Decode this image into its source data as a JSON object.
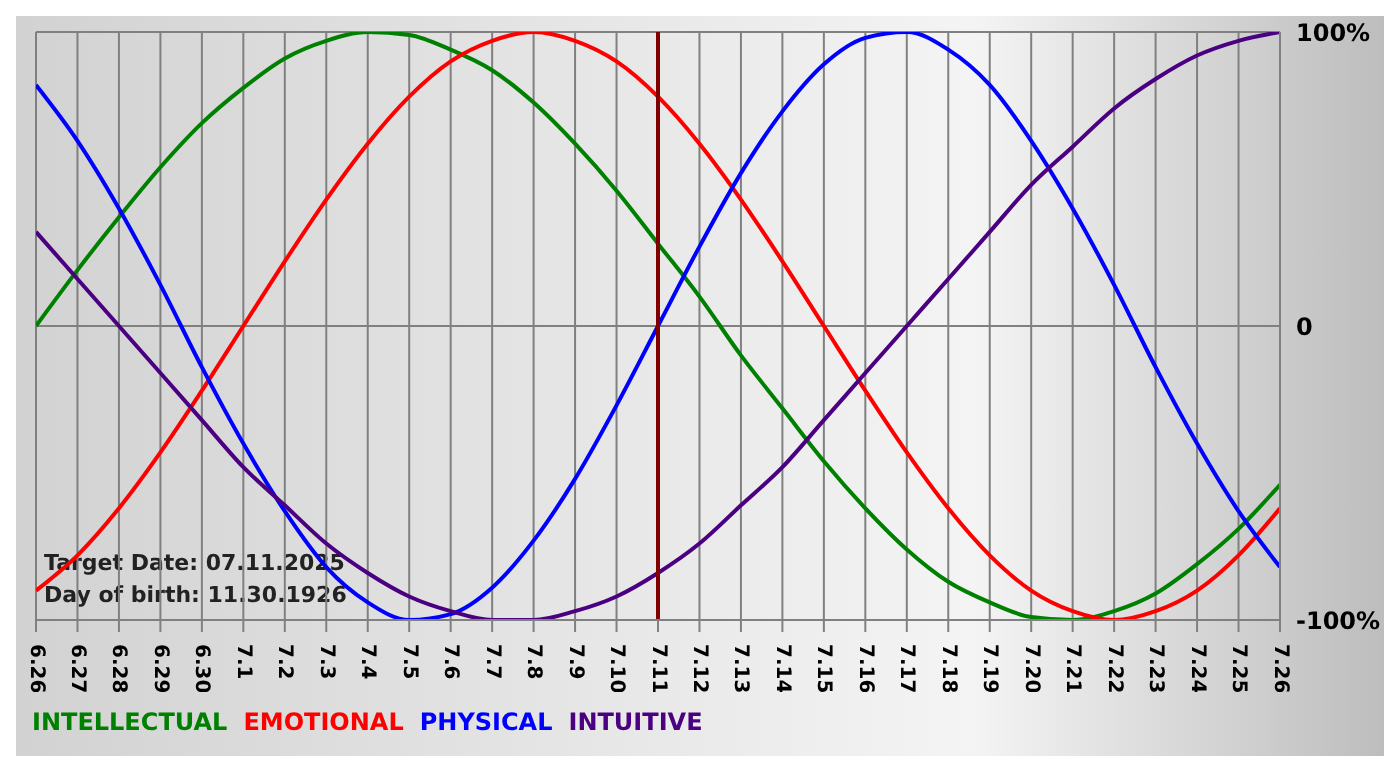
{
  "chart_data": {
    "type": "line",
    "categories": [
      "6.26",
      "6.27",
      "6.28",
      "6.29",
      "6.30",
      "7.1",
      "7.2",
      "7.3",
      "7.4",
      "7.5",
      "7.6",
      "7.7",
      "7.8",
      "7.9",
      "7.10",
      "7.11",
      "7.12",
      "7.13",
      "7.14",
      "7.15",
      "7.16",
      "7.17",
      "7.18",
      "7.19",
      "7.20",
      "7.21",
      "7.22",
      "7.23",
      "7.24",
      "7.25",
      "7.26"
    ],
    "series": [
      {
        "name": "INTELLECTUAL",
        "color": "#008000",
        "values": [
          0,
          19,
          37,
          54,
          69,
          81,
          91,
          97,
          100,
          99,
          94,
          87,
          76,
          62,
          46,
          28,
          10,
          -10,
          -28,
          -46,
          -62,
          -76,
          -87,
          -94,
          -99,
          -100,
          -97,
          -91,
          -81,
          -69,
          -54
        ]
      },
      {
        "name": "EMOTIONAL",
        "color": "#ff0000",
        "values": [
          -90,
          -78,
          -62,
          -43,
          -22,
          0,
          22,
          43,
          62,
          78,
          90,
          97,
          100,
          97,
          90,
          78,
          62,
          43,
          22,
          0,
          -22,
          -43,
          -62,
          -78,
          -90,
          -97,
          -100,
          -97,
          -90,
          -78,
          -62
        ]
      },
      {
        "name": "PHYSICAL",
        "color": "#0000ff",
        "values": [
          82,
          63,
          40,
          14,
          -14,
          -40,
          -63,
          -82,
          -94,
          -100,
          -98,
          -89,
          -73,
          -52,
          -27,
          0,
          27,
          52,
          73,
          89,
          98,
          100,
          94,
          82,
          63,
          40,
          14,
          -14,
          -40,
          -63,
          -82
        ]
      },
      {
        "name": "INTUITIVE",
        "color": "#4b0082",
        "values": [
          32,
          16,
          0,
          -16,
          -32,
          -48,
          -61,
          -74,
          -84,
          -92,
          -97,
          -100,
          -100,
          -97,
          -92,
          -84,
          -74,
          -61,
          -48,
          -32,
          -16,
          0,
          16,
          32,
          48,
          61,
          74,
          84,
          92,
          97,
          100
        ]
      }
    ],
    "ylim": [
      -100,
      100
    ],
    "yticks": [
      {
        "value": -100,
        "label": "-100%"
      },
      0,
      {
        "value": 100,
        "label": "100%"
      }
    ],
    "grid": true,
    "legend": "bottom",
    "ref_lines": [
      {
        "axis": "x",
        "value": "7.11",
        "color": "#800000"
      }
    ],
    "annotations": [
      "Target Date: 07.11.2025",
      "Day of birth: 11.30.1926"
    ]
  }
}
